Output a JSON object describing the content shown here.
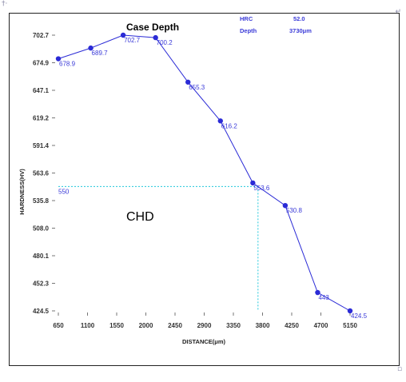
{
  "chart_data": {
    "type": "line",
    "title": "Case Depth",
    "xlabel": "DISTANCE(μm)",
    "ylabel": "HARDNESS(HV)",
    "x_ticks": [
      "650",
      "1100",
      "1550",
      "2000",
      "2450",
      "2900",
      "3350",
      "3800",
      "4250",
      "4700",
      "5150"
    ],
    "y_ticks": [
      "702.7",
      "674.9",
      "647.1",
      "619.2",
      "591.4",
      "563.6",
      "535.8",
      "508.0",
      "480.1",
      "452.3",
      "424.5"
    ],
    "xlim": [
      650,
      5150
    ],
    "ylim": [
      424.5,
      702.7
    ],
    "series": [
      {
        "color": "#2b2bd6",
        "points": [
          {
            "x": 650,
            "y": 678.9,
            "label": "678.9"
          },
          {
            "x": 1150,
            "y": 689.7,
            "label": "689.7"
          },
          {
            "x": 1650,
            "y": 702.7,
            "label": "702.7"
          },
          {
            "x": 2150,
            "y": 700.2,
            "label": "700.2"
          },
          {
            "x": 2650,
            "y": 655.3,
            "label": "655.3"
          },
          {
            "x": 3150,
            "y": 616.2,
            "label": "616.2"
          },
          {
            "x": 3650,
            "y": 553.6,
            "label": "553.6"
          },
          {
            "x": 4150,
            "y": 530.8,
            "label": "530.8"
          },
          {
            "x": 4650,
            "y": 443,
            "label": "443"
          },
          {
            "x": 5150,
            "y": 424.5,
            "label": "424.5"
          }
        ]
      }
    ],
    "reference": {
      "hardness": 550,
      "hardness_label": "550",
      "depth": 3730,
      "color": "#22c8dc"
    },
    "info": {
      "hrc_label": "HRC",
      "hrc_value": "52.0",
      "depth_label": "Depth",
      "depth_value": "3730μm"
    },
    "annotation": "CHD"
  }
}
